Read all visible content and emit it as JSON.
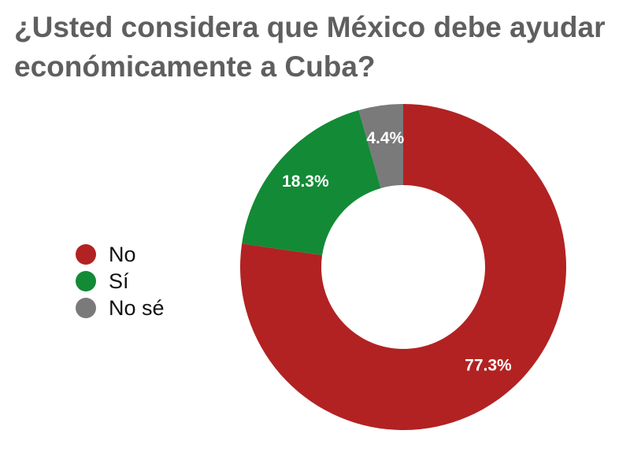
{
  "chart_data": {
    "type": "pie",
    "title": "¿Usted considera que México debe ayudar económicamente a Cuba?",
    "categories": [
      "No",
      "Sí",
      "No sé"
    ],
    "values": [
      77.3,
      18.3,
      4.4
    ],
    "value_labels": [
      "77.3%",
      "18.3%",
      "4.4%"
    ],
    "colors": [
      "#b22222",
      "#138a36",
      "#7a7a7a"
    ],
    "donut": true,
    "start_angle_deg": 0,
    "direction": "clockwise",
    "legend": "left"
  }
}
